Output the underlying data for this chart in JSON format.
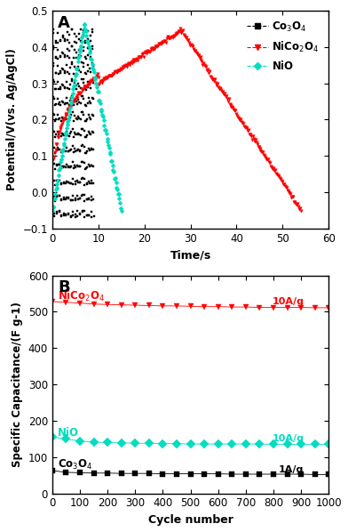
{
  "panel_A": {
    "xlabel": "Time/s",
    "ylabel": "Potential/V(vs. Ag/AgCl)",
    "xlim": [
      0,
      60
    ],
    "ylim": [
      -0.1,
      0.5
    ],
    "yticks": [
      -0.1,
      0.0,
      0.1,
      0.2,
      0.3,
      0.4,
      0.5
    ],
    "xticks": [
      0,
      10,
      20,
      30,
      40,
      50,
      60
    ],
    "co3o4_color": "#000000",
    "nico2o4_color": "#ff0000",
    "nio_color": "#00ddc0"
  },
  "panel_B": {
    "xlabel": "Cycle number",
    "ylabel": "Specific Capacitance/(F g-1)",
    "xlim": [
      0,
      1000
    ],
    "ylim": [
      0,
      600
    ],
    "yticks": [
      0,
      100,
      200,
      300,
      400,
      500,
      600
    ],
    "xticks": [
      0,
      100,
      200,
      300,
      400,
      500,
      600,
      700,
      800,
      900,
      1000
    ],
    "co3o4_color": "#000000",
    "nico2o4_color": "#ff0000",
    "nio_color": "#00ddc0",
    "nico2o4_values": [
      528,
      526,
      524,
      521,
      520,
      519,
      518,
      517,
      516,
      516,
      515,
      514,
      514,
      513,
      513,
      512,
      512,
      512,
      512,
      511,
      511
    ],
    "nico2o4_cycles": [
      1,
      50,
      100,
      150,
      200,
      250,
      300,
      350,
      400,
      450,
      500,
      550,
      600,
      650,
      700,
      750,
      800,
      850,
      900,
      950,
      1000
    ],
    "nio_values": [
      155,
      150,
      144,
      141,
      140,
      139,
      138,
      138,
      137,
      137,
      136,
      136,
      136,
      136,
      136,
      136,
      135,
      135,
      135,
      135,
      135
    ],
    "nio_cycles": [
      1,
      50,
      100,
      150,
      200,
      250,
      300,
      350,
      400,
      450,
      500,
      550,
      600,
      650,
      700,
      750,
      800,
      850,
      900,
      950,
      1000
    ],
    "co3o4_values": [
      63,
      58,
      57,
      56,
      56,
      55,
      55,
      55,
      54,
      54,
      54,
      54,
      54,
      53,
      53,
      53,
      53,
      53,
      53,
      52,
      52
    ],
    "co3o4_cycles": [
      1,
      50,
      100,
      150,
      200,
      250,
      300,
      350,
      400,
      450,
      500,
      550,
      600,
      650,
      700,
      750,
      800,
      850,
      900,
      950,
      1000
    ]
  }
}
